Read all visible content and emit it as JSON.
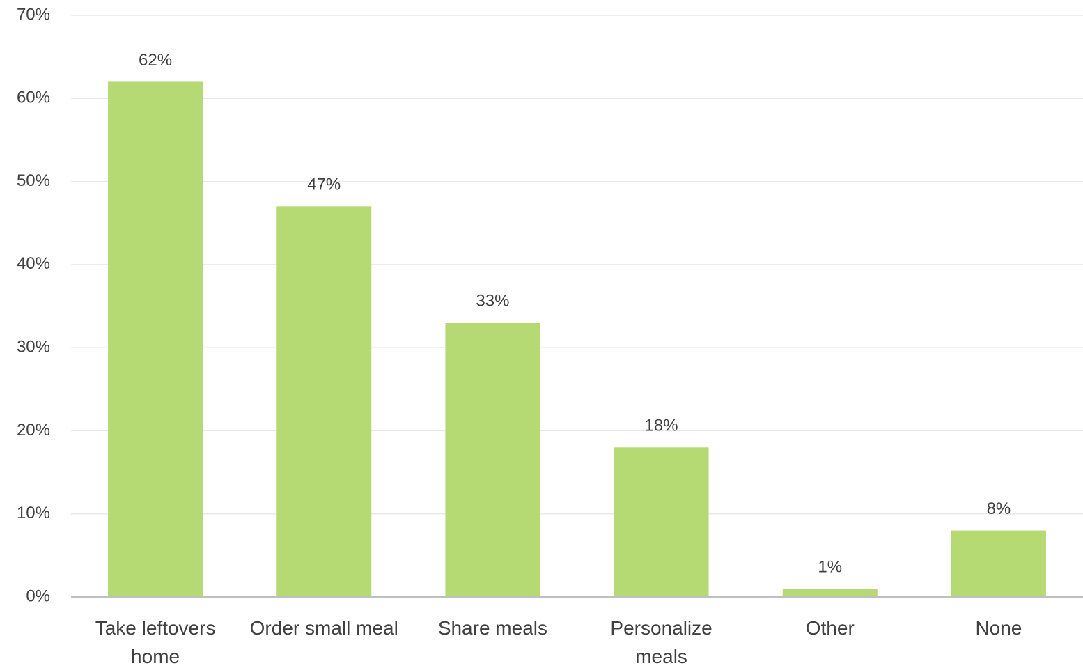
{
  "chart_data": {
    "type": "bar",
    "categories": [
      "Take leftovers home",
      "Order small meal",
      "Share meals",
      "Personalize meals",
      "Other",
      "None"
    ],
    "values": [
      62,
      47,
      33,
      18,
      1,
      8
    ],
    "value_labels": [
      "62%",
      "47%",
      "33%",
      "18%",
      "1%",
      "8%"
    ],
    "color": "#b5d973",
    "ylim": [
      0,
      70
    ],
    "yticks": [
      {
        "value": 0,
        "label": "0%"
      },
      {
        "value": 10,
        "label": "10%"
      },
      {
        "value": 20,
        "label": "20%"
      },
      {
        "value": 30,
        "label": "30%"
      },
      {
        "value": 40,
        "label": "40%"
      },
      {
        "value": 50,
        "label": "50%"
      },
      {
        "value": 60,
        "label": "60%"
      },
      {
        "value": 70,
        "label": "70%"
      }
    ],
    "grid": true
  }
}
